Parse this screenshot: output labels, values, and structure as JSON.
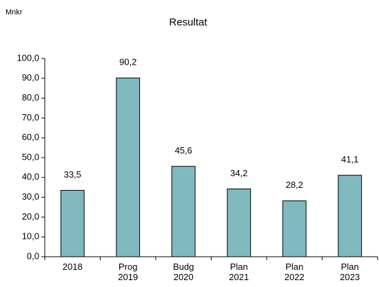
{
  "chart_data": {
    "type": "bar",
    "title": "Resultat",
    "unit_label": "Mnkr",
    "categories": [
      "2018",
      "Prog 2019",
      "Budg 2020",
      "Plan 2021",
      "Plan 2022",
      "Plan 2023"
    ],
    "values": [
      33.5,
      90.2,
      45.6,
      34.2,
      28.2,
      41.1
    ],
    "value_labels": [
      "33,5",
      "90,2",
      "45,6",
      "34,2",
      "28,2",
      "41,1"
    ],
    "color": "#80b9c0",
    "ylim": [
      0,
      100
    ],
    "yticks": [
      {
        "value": 0,
        "label": "0,0"
      },
      {
        "value": 10,
        "label": "10,0"
      },
      {
        "value": 20,
        "label": "20,0"
      },
      {
        "value": 30,
        "label": "30,0"
      },
      {
        "value": 40,
        "label": "40,0"
      },
      {
        "value": 50,
        "label": "50,0"
      },
      {
        "value": 60,
        "label": "60,0"
      },
      {
        "value": 70,
        "label": "70,0"
      },
      {
        "value": 80,
        "label": "80,0"
      },
      {
        "value": 90,
        "label": "90,0"
      },
      {
        "value": 100,
        "label": "100,0"
      }
    ],
    "grid": false
  }
}
